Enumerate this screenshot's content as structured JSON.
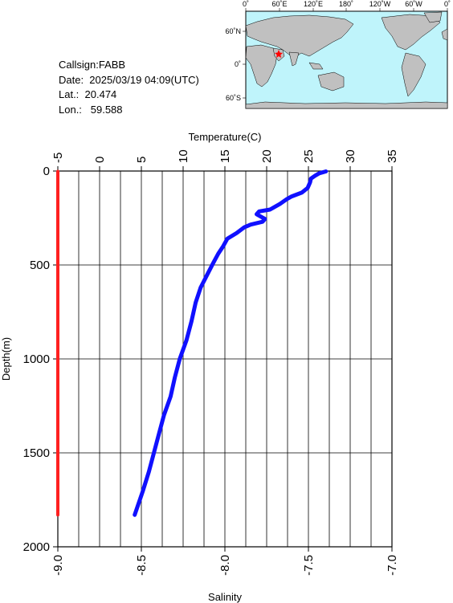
{
  "info": {
    "callsign": "Callsign:FABB",
    "date": "Date:  2025/03/19 04:09(UTC)",
    "lat": "Lat.:  20.474",
    "lon": "Lon.:   59.588"
  },
  "map": {
    "lon_labels": [
      "0˚",
      "60˚E",
      "120˚E",
      "180˚",
      "120˚W",
      "60˚W",
      "0˚"
    ],
    "lat_labels": [
      "60˚N",
      "0˚",
      "60˚S"
    ],
    "station_marker": "red-star",
    "colors": {
      "ocean": "#bff4fb",
      "land": "#c0c0c0",
      "marker": "#ff0000"
    }
  },
  "chart_data": {
    "type": "line",
    "xlabel_top": "Temperature(C)",
    "xlabel_bottom": "Salinity",
    "ylabel": "Depth(m)",
    "temperature_ticks": [
      "-5",
      "0",
      "5",
      "10",
      "15",
      "20",
      "25",
      "30",
      "35"
    ],
    "salinity_ticks": [
      "-9.0",
      "-8.5",
      "-8.0",
      "-7.5",
      "-7.0"
    ],
    "depth_ticks": [
      "0",
      "500",
      "1000",
      "1500",
      "2000"
    ],
    "temperature_range": [
      -5,
      35
    ],
    "salinity_range": [
      -9.0,
      -7.0
    ],
    "depth_range": [
      0,
      2000
    ],
    "grid": true,
    "series": [
      {
        "name": "Temperature",
        "color": "#1010ff",
        "axis": "temperature",
        "points": [
          [
            27.1,
            2
          ],
          [
            26.3,
            12
          ],
          [
            25.8,
            25
          ],
          [
            25.3,
            40
          ],
          [
            25.2,
            60
          ],
          [
            24.9,
            90
          ],
          [
            24.2,
            115
          ],
          [
            23.0,
            135
          ],
          [
            22.4,
            150
          ],
          [
            21.6,
            175
          ],
          [
            20.4,
            205
          ],
          [
            19.1,
            215
          ],
          [
            18.8,
            230
          ],
          [
            19.8,
            255
          ],
          [
            19.5,
            270
          ],
          [
            18.1,
            285
          ],
          [
            17.3,
            300
          ],
          [
            16.4,
            330
          ],
          [
            15.3,
            360
          ],
          [
            14.8,
            400
          ],
          [
            14.2,
            440
          ],
          [
            13.6,
            490
          ],
          [
            12.9,
            550
          ],
          [
            12.1,
            620
          ],
          [
            11.5,
            700
          ],
          [
            11.0,
            800
          ],
          [
            10.4,
            900
          ],
          [
            9.6,
            1000
          ],
          [
            9.0,
            1100
          ],
          [
            8.5,
            1200
          ],
          [
            7.7,
            1300
          ],
          [
            7.1,
            1400
          ],
          [
            6.5,
            1500
          ],
          [
            5.9,
            1600
          ],
          [
            5.2,
            1700
          ],
          [
            4.2,
            1830
          ]
        ]
      },
      {
        "name": "Salinity",
        "color": "#ff2020",
        "axis": "salinity",
        "points": [
          [
            -9.0,
            2
          ],
          [
            -9.0,
            500
          ],
          [
            -9.0,
            1000
          ],
          [
            -9.0,
            1500
          ],
          [
            -9.0,
            1830
          ]
        ]
      }
    ]
  }
}
